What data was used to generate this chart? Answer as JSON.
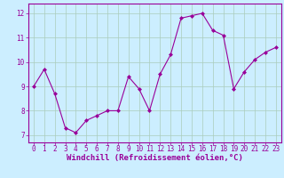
{
  "x": [
    0,
    1,
    2,
    3,
    4,
    5,
    6,
    7,
    8,
    9,
    10,
    11,
    12,
    13,
    14,
    15,
    16,
    17,
    18,
    19,
    20,
    21,
    22,
    23
  ],
  "y": [
    9.0,
    9.7,
    8.7,
    7.3,
    7.1,
    7.6,
    7.8,
    8.0,
    8.0,
    9.4,
    8.9,
    8.0,
    9.5,
    10.3,
    11.8,
    11.9,
    12.0,
    11.3,
    11.1,
    8.9,
    9.6,
    10.1,
    10.4,
    10.6
  ],
  "xlim": [
    -0.5,
    23.5
  ],
  "ylim": [
    6.7,
    12.4
  ],
  "yticks": [
    7,
    8,
    9,
    10,
    11,
    12
  ],
  "xticks": [
    0,
    1,
    2,
    3,
    4,
    5,
    6,
    7,
    8,
    9,
    10,
    11,
    12,
    13,
    14,
    15,
    16,
    17,
    18,
    19,
    20,
    21,
    22,
    23
  ],
  "xlabel": "Windchill (Refroidissement éolien,°C)",
  "line_color": "#990099",
  "marker": "D",
  "marker_size": 2.0,
  "bg_color": "#cceeff",
  "grid_color": "#aaccbb",
  "tick_color": "#990099",
  "label_color": "#990099",
  "tick_fontsize": 5.5,
  "xlabel_fontsize": 6.5
}
